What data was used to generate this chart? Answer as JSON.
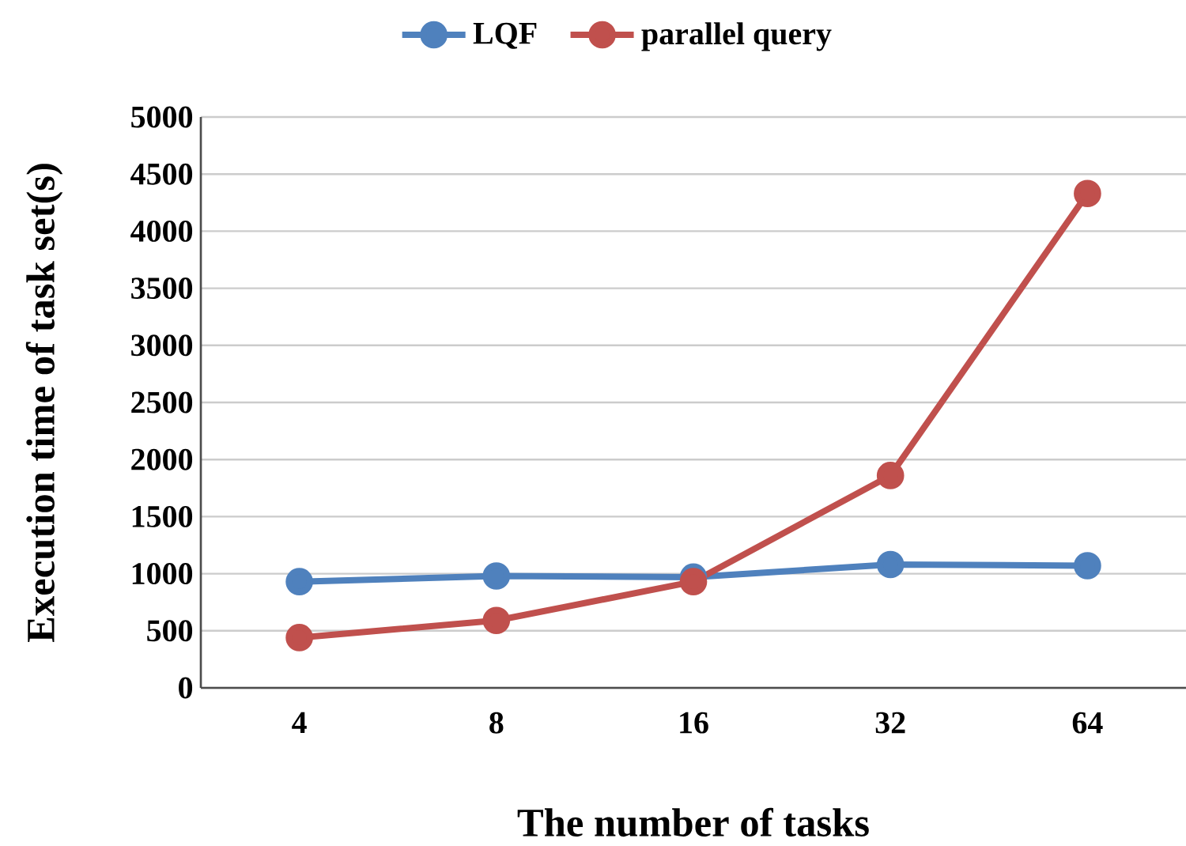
{
  "chart_data": {
    "type": "line",
    "xlabel": "The number of tasks",
    "ylabel": "Execution time of task set(s)",
    "categories": [
      "4",
      "8",
      "16",
      "32",
      "64"
    ],
    "series": [
      {
        "name": "LQF",
        "color": "#4f81bd",
        "values": [
          930,
          980,
          970,
          1080,
          1070
        ]
      },
      {
        "name": "parallel query",
        "color": "#c0504d",
        "values": [
          440,
          590,
          930,
          1860,
          4330
        ]
      }
    ],
    "ylim": [
      0,
      5000
    ],
    "yticks": [
      0,
      500,
      1000,
      1500,
      2000,
      2500,
      3000,
      3500,
      4000,
      4500,
      5000
    ],
    "grid": "y",
    "legend": "top",
    "marker": "circle",
    "line_style": "solid"
  }
}
